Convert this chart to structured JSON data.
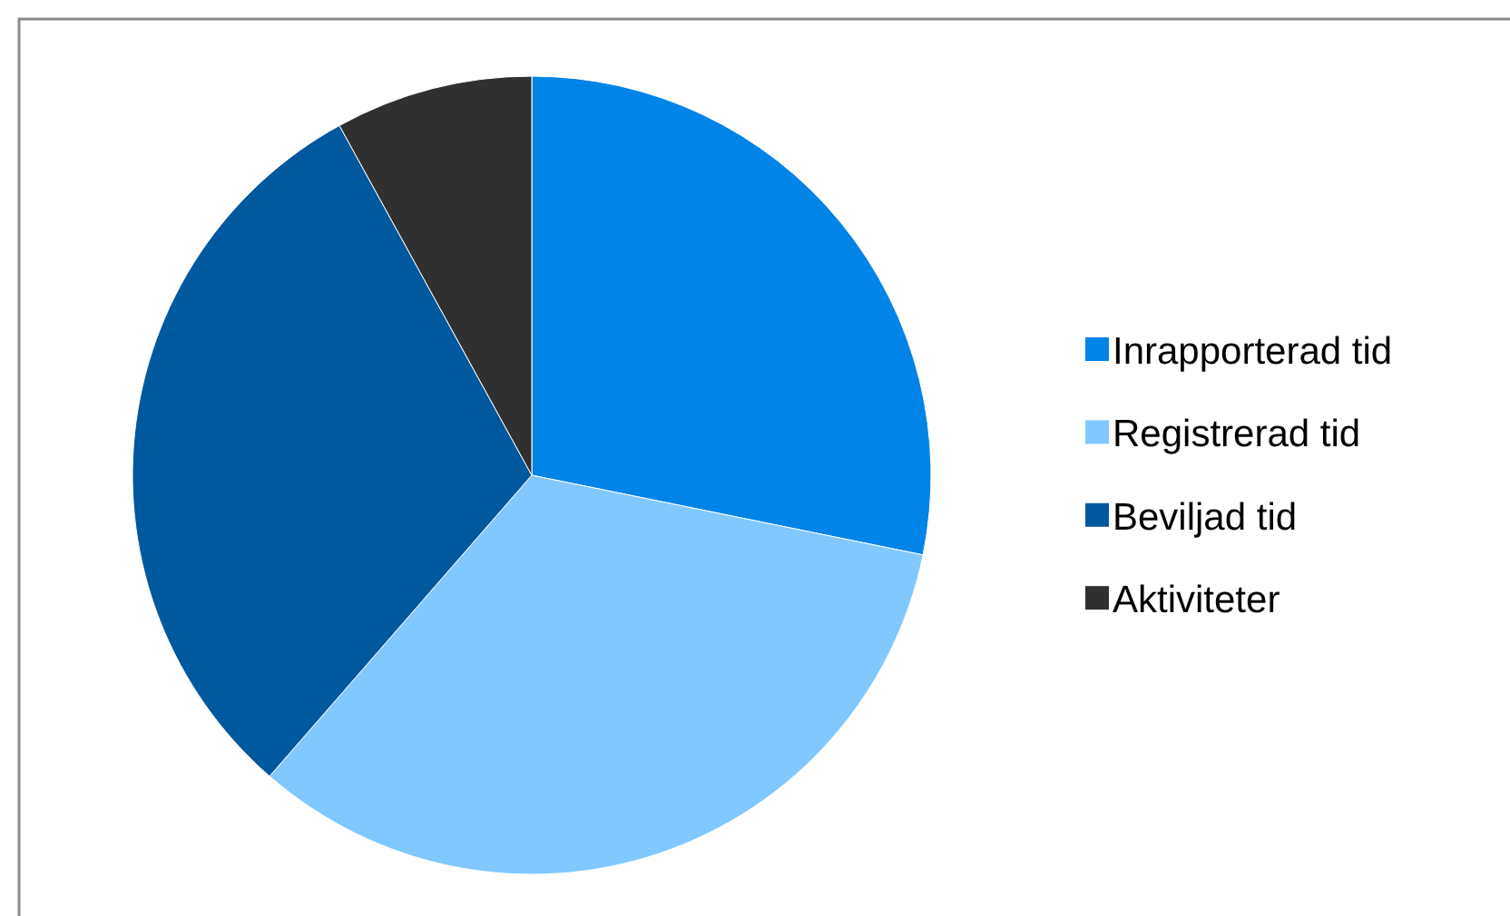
{
  "chart_data": {
    "type": "pie",
    "categories": [
      "Inrapporterad tid",
      "Registrerad tid",
      "Beviljad tid",
      "Aktiviteter"
    ],
    "values": [
      28.2,
      33.2,
      30.6,
      8.0
    ],
    "colors": [
      "#0084e8",
      "#80c8ff",
      "#00589e",
      "#303030"
    ],
    "legend": "right"
  }
}
